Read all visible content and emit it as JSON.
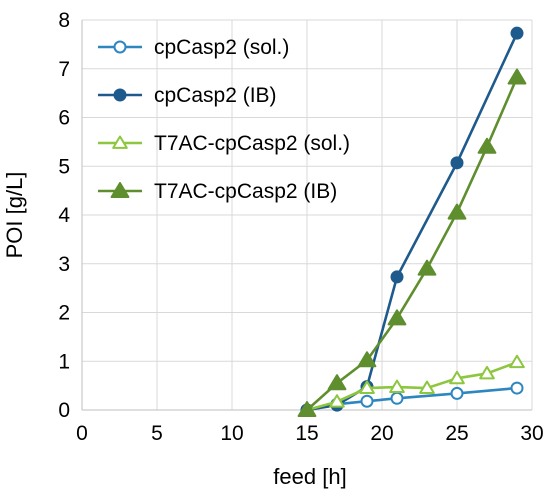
{
  "chart_data": {
    "type": "line",
    "title": "",
    "xlabel": "feed [h]",
    "ylabel": "POI [g/L]",
    "xlim": [
      0,
      30
    ],
    "ylim": [
      0,
      8
    ],
    "xticks": [
      0,
      5,
      10,
      15,
      20,
      25,
      30
    ],
    "yticks": [
      0,
      1,
      2,
      3,
      4,
      5,
      6,
      7,
      8
    ],
    "grid": true,
    "legend_position": "top-left",
    "series": [
      {
        "name": "cpCasp2 (sol.)",
        "marker": "circle",
        "filled": false,
        "color": "#2E86C1",
        "x": [
          15,
          17,
          19,
          21,
          25,
          29
        ],
        "y": [
          0,
          0.12,
          0.18,
          0.24,
          0.34,
          0.45
        ]
      },
      {
        "name": "cpCasp2 (IB)",
        "marker": "circle",
        "filled": true,
        "color": "#1F5A8C",
        "x": [
          15,
          17,
          19,
          21,
          25,
          29
        ],
        "y": [
          0,
          0.1,
          0.48,
          2.73,
          5.07,
          7.73
        ]
      },
      {
        "name": "T7AC-cpCasp2 (sol.)",
        "marker": "triangle",
        "filled": false,
        "color": "#8DC63F",
        "x": [
          15,
          17,
          19,
          21,
          23,
          25,
          27,
          29
        ],
        "y": [
          0,
          0.17,
          0.45,
          0.47,
          0.45,
          0.65,
          0.75,
          0.98
        ]
      },
      {
        "name": "T7AC-cpCasp2 (IB)",
        "marker": "triangle",
        "filled": true,
        "color": "#5E8E2E",
        "x": [
          15,
          17,
          19,
          21,
          23,
          25,
          27,
          29
        ],
        "y": [
          0,
          0.55,
          1.02,
          1.88,
          2.9,
          4.05,
          5.4,
          6.82
        ]
      }
    ]
  }
}
